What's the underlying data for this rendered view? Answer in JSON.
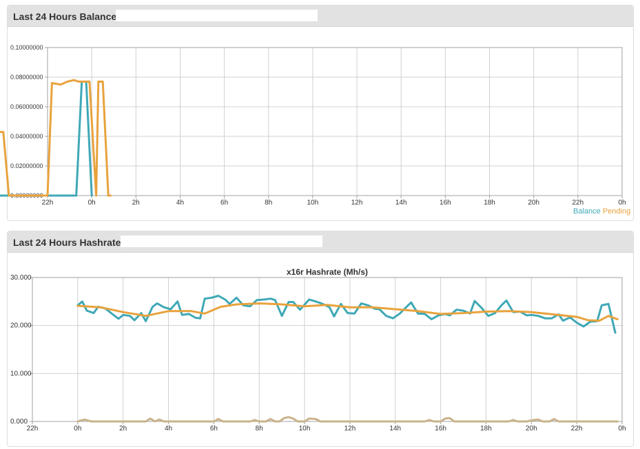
{
  "balance_panel": {
    "title": "Last 24 Hours Balance:"
  },
  "hashrate_panel": {
    "title": "Last 24 Hours Hashrate:"
  },
  "colors": {
    "balance": "#3fa8b6",
    "pending": "#e8a23c",
    "grid": "#d0d0d0",
    "frame": "#a0a0a0",
    "text": "#333333"
  },
  "chart_data": [
    {
      "type": "line",
      "x_ticks": [
        "22h",
        "0h",
        "2h",
        "4h",
        "6h",
        "8h",
        "10h",
        "12h",
        "14h",
        "16h",
        "18h",
        "20h",
        "22h",
        "0h"
      ],
      "ylim": [
        0,
        0.1
      ],
      "y_ticks": [
        "0.00000000",
        "0.02000000",
        "0.04000000",
        "0.06000000",
        "0.08000000",
        "0.10000000"
      ],
      "grid": true,
      "legend": "bottom-right",
      "series": [
        {
          "name": "Balance",
          "color": "#3fa8b6",
          "points": [
            [
              0,
              0
            ],
            [
              17.4,
              0
            ],
            [
              17.9,
              0.043
            ],
            [
              18.2,
              0
            ],
            [
              23.3,
              0
            ],
            [
              23.55,
              0.077
            ],
            [
              23.75,
              0.077
            ],
            [
              24.0,
              0
            ]
          ]
        },
        {
          "name": "Pending",
          "color": "#e8a23c",
          "points": [
            [
              0,
              0
            ],
            [
              17.3,
              0
            ],
            [
              17.55,
              0.043
            ],
            [
              17.9,
              0.044
            ],
            [
              18.4,
              0.043
            ],
            [
              19.2,
              0.043
            ],
            [
              19.8,
              0.043
            ],
            [
              20.0,
              0.043
            ],
            [
              20.25,
              0
            ],
            [
              22.0,
              0
            ],
            [
              22.2,
              0.076
            ],
            [
              22.6,
              0.075
            ],
            [
              22.9,
              0.077
            ],
            [
              23.2,
              0.078
            ],
            [
              23.4,
              0.077
            ],
            [
              23.9,
              0.077
            ],
            [
              24.2,
              0
            ],
            [
              24.3,
              0.077
            ],
            [
              24.5,
              0.077
            ],
            [
              24.75,
              0
            ],
            [
              24.85,
              0
            ]
          ]
        }
      ]
    },
    {
      "type": "line",
      "title": "x16r Hashrate (Mh/s)",
      "x_ticks": [
        "22h",
        "0h",
        "2h",
        "4h",
        "6h",
        "8h",
        "10h",
        "12h",
        "14h",
        "16h",
        "18h",
        "20h",
        "22h",
        "0h"
      ],
      "ylim": [
        0,
        30
      ],
      "y_ticks": [
        "0.000",
        "10.000",
        "20.000",
        "30.000"
      ],
      "grid": true,
      "series": [
        {
          "color": "#3fa8b6",
          "points": [
            [
              24.0,
              24.2
            ],
            [
              24.2,
              25.0
            ],
            [
              24.4,
              23.1
            ],
            [
              24.7,
              22.6
            ],
            [
              24.9,
              23.9
            ],
            [
              25.2,
              23.6
            ],
            [
              25.5,
              22.5
            ],
            [
              25.8,
              21.4
            ],
            [
              26.0,
              22.2
            ],
            [
              26.3,
              22.0
            ],
            [
              26.5,
              21.1
            ],
            [
              26.8,
              22.6
            ],
            [
              27.0,
              20.9
            ],
            [
              27.3,
              23.9
            ],
            [
              27.5,
              24.6
            ],
            [
              27.8,
              23.8
            ],
            [
              28.1,
              23.4
            ],
            [
              28.4,
              25.0
            ],
            [
              28.6,
              22.2
            ],
            [
              28.9,
              22.4
            ],
            [
              29.2,
              21.6
            ],
            [
              29.4,
              21.5
            ],
            [
              29.6,
              25.6
            ],
            [
              29.9,
              25.8
            ],
            [
              30.2,
              26.2
            ],
            [
              30.5,
              25.4
            ],
            [
              30.7,
              24.5
            ],
            [
              31.0,
              25.8
            ],
            [
              31.3,
              24.2
            ],
            [
              31.6,
              24.0
            ],
            [
              31.9,
              25.3
            ],
            [
              32.2,
              25.4
            ],
            [
              32.5,
              25.6
            ],
            [
              32.7,
              25.3
            ],
            [
              33.0,
              22.0
            ],
            [
              33.3,
              24.9
            ],
            [
              33.5,
              24.9
            ],
            [
              33.8,
              23.3
            ],
            [
              34.2,
              25.4
            ],
            [
              34.5,
              25.0
            ],
            [
              34.8,
              24.5
            ],
            [
              35.1,
              23.8
            ],
            [
              35.3,
              21.9
            ],
            [
              35.6,
              24.5
            ],
            [
              35.9,
              22.6
            ],
            [
              36.2,
              22.5
            ],
            [
              36.5,
              24.6
            ],
            [
              36.8,
              24.2
            ],
            [
              37.1,
              23.5
            ],
            [
              37.3,
              23.4
            ],
            [
              37.6,
              22.0
            ],
            [
              37.9,
              21.5
            ],
            [
              38.2,
              22.5
            ],
            [
              38.5,
              23.9
            ],
            [
              38.7,
              24.8
            ],
            [
              39.0,
              22.5
            ],
            [
              39.3,
              22.4
            ],
            [
              39.6,
              21.3
            ],
            [
              39.9,
              22.1
            ],
            [
              40.2,
              22.4
            ],
            [
              40.4,
              22.1
            ],
            [
              40.7,
              23.3
            ],
            [
              41.0,
              23.1
            ],
            [
              41.3,
              22.5
            ],
            [
              41.5,
              25.1
            ],
            [
              41.8,
              23.7
            ],
            [
              42.1,
              22.0
            ],
            [
              42.4,
              22.6
            ],
            [
              42.7,
              24.3
            ],
            [
              42.9,
              25.2
            ],
            [
              43.2,
              22.8
            ],
            [
              43.5,
              22.9
            ],
            [
              43.8,
              22.1
            ],
            [
              44.0,
              22.2
            ],
            [
              44.3,
              22.0
            ],
            [
              44.6,
              21.5
            ],
            [
              44.9,
              21.5
            ],
            [
              45.2,
              22.3
            ],
            [
              45.4,
              21.0
            ],
            [
              45.7,
              21.7
            ],
            [
              46.0,
              20.6
            ],
            [
              46.3,
              19.8
            ],
            [
              46.6,
              20.8
            ],
            [
              46.9,
              20.9
            ],
            [
              47.1,
              24.2
            ],
            [
              47.4,
              24.5
            ],
            [
              47.7,
              18.5
            ]
          ]
        },
        {
          "color": "#e8a23c",
          "points": [
            [
              24.0,
              24.1
            ],
            [
              25.0,
              23.8
            ],
            [
              26.0,
              22.8
            ],
            [
              27.0,
              22.0
            ],
            [
              28.0,
              23.0
            ],
            [
              29.0,
              23.0
            ],
            [
              29.6,
              22.5
            ],
            [
              30.3,
              23.9
            ],
            [
              31.0,
              24.4
            ],
            [
              32.0,
              24.6
            ],
            [
              33.0,
              24.4
            ],
            [
              34.0,
              24.0
            ],
            [
              35.0,
              24.3
            ],
            [
              36.0,
              23.8
            ],
            [
              37.0,
              23.8
            ],
            [
              38.0,
              23.4
            ],
            [
              39.0,
              23.0
            ],
            [
              40.0,
              22.4
            ],
            [
              41.0,
              22.6
            ],
            [
              42.0,
              22.9
            ],
            [
              43.0,
              23.0
            ],
            [
              44.0,
              22.8
            ],
            [
              45.0,
              22.3
            ],
            [
              46.0,
              21.8
            ],
            [
              46.5,
              21.1
            ],
            [
              47.0,
              21.0
            ],
            [
              47.4,
              22.0
            ],
            [
              47.8,
              21.3
            ]
          ]
        },
        {
          "color": "#c9b38a",
          "points": [
            [
              24.0,
              0
            ],
            [
              24.3,
              0.4
            ],
            [
              24.6,
              0
            ],
            [
              27.0,
              0
            ],
            [
              27.2,
              0.6
            ],
            [
              27.4,
              0
            ],
            [
              27.6,
              0.4
            ],
            [
              27.8,
              0
            ],
            [
              30.0,
              0
            ],
            [
              30.2,
              0.5
            ],
            [
              30.4,
              0
            ],
            [
              31.6,
              0
            ],
            [
              31.8,
              0.3
            ],
            [
              32.0,
              0
            ],
            [
              32.3,
              0
            ],
            [
              32.5,
              0.5
            ],
            [
              32.7,
              0
            ],
            [
              32.9,
              0
            ],
            [
              33.1,
              0.7
            ],
            [
              33.3,
              0.9
            ],
            [
              33.5,
              0.6
            ],
            [
              33.7,
              0
            ],
            [
              34.0,
              0
            ],
            [
              34.2,
              0.6
            ],
            [
              34.5,
              0.5
            ],
            [
              34.7,
              0
            ],
            [
              39.3,
              0
            ],
            [
              39.5,
              0.3
            ],
            [
              39.7,
              0
            ],
            [
              40.0,
              0
            ],
            [
              40.2,
              0.6
            ],
            [
              40.4,
              0.7
            ],
            [
              40.6,
              0
            ],
            [
              43.0,
              0
            ],
            [
              43.2,
              0.3
            ],
            [
              43.4,
              0
            ],
            [
              43.8,
              0
            ],
            [
              44.1,
              0.3
            ],
            [
              44.3,
              0.4
            ],
            [
              44.5,
              0
            ],
            [
              44.8,
              0
            ],
            [
              45.0,
              0.5
            ],
            [
              45.2,
              0
            ],
            [
              47.8,
              0
            ]
          ]
        }
      ]
    }
  ]
}
